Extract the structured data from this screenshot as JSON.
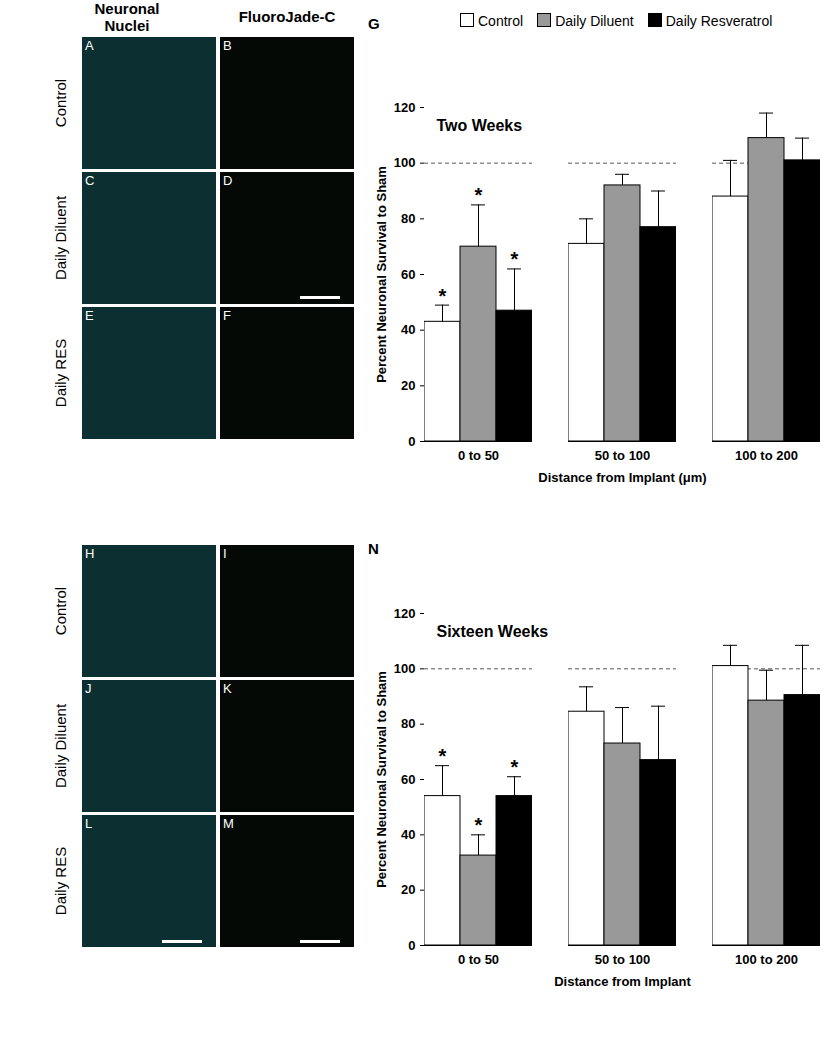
{
  "image_panels": {
    "column_headers": [
      "Neuronal Nuclei",
      "FluoroJade-C"
    ],
    "groups": [
      {
        "rows": [
          {
            "label": "Control",
            "panels": [
              "A",
              "B"
            ]
          },
          {
            "label": "Daily Diluent",
            "panels": [
              "C",
              "D"
            ]
          },
          {
            "label": "Daily RES",
            "panels": [
              "E",
              "F"
            ]
          }
        ]
      },
      {
        "rows": [
          {
            "label": "Control",
            "panels": [
              "H",
              "I"
            ]
          },
          {
            "label": "Daily Diluent",
            "panels": [
              "J",
              "K"
            ]
          },
          {
            "label": "Daily RES",
            "panels": [
              "L",
              "M"
            ]
          }
        ]
      }
    ]
  },
  "chart_data": [
    {
      "type": "bar",
      "panel_label": "G",
      "title": "Two Weeks",
      "x_label": "Distance from Implant (μm)",
      "y_label": "Percent Neuronal Survival to Sham",
      "categories": [
        "0 to 50",
        "50 to 100",
        "100 to 200"
      ],
      "series": [
        {
          "name": "Control",
          "color": "#ffffff",
          "values": [
            43,
            71,
            88
          ],
          "error": [
            6,
            9,
            13
          ]
        },
        {
          "name": "Daily Diluent",
          "color": "#999999",
          "values": [
            70,
            92,
            109
          ],
          "error": [
            15,
            4,
            9
          ]
        },
        {
          "name": "Daily Resveratrol",
          "color": "#000000",
          "values": [
            47,
            77,
            101
          ],
          "error": [
            15,
            13,
            8
          ]
        }
      ],
      "annotations": [
        {
          "series": "Control",
          "category": "0 to 50",
          "text": "*"
        },
        {
          "series": "Daily Diluent",
          "category": "0 to 50",
          "text": "*"
        },
        {
          "series": "Daily Resveratrol",
          "category": "0 to 50",
          "text": "*"
        }
      ],
      "reference_line": 100,
      "ylim": [
        0,
        120
      ],
      "yticks": [
        0,
        20,
        40,
        60,
        80,
        100,
        120
      ],
      "legend": "top"
    },
    {
      "type": "bar",
      "panel_label": "N",
      "title": "Sixteen Weeks",
      "x_label": "Distance from Implant",
      "y_label": "Percent Neuronal Survival to Sham",
      "categories": [
        "0 to 50",
        "50 to 100",
        "100 to 200"
      ],
      "series": [
        {
          "name": "Control",
          "color": "#ffffff",
          "values": [
            54,
            84.5,
            101
          ],
          "error": [
            11,
            9,
            7.5
          ]
        },
        {
          "name": "Daily Diluent",
          "color": "#999999",
          "values": [
            32.5,
            73,
            88.5
          ],
          "error": [
            7.5,
            13,
            11
          ]
        },
        {
          "name": "Daily Resveratrol",
          "color": "#000000",
          "values": [
            54,
            67,
            90.5
          ],
          "error": [
            7,
            19.5,
            18
          ]
        }
      ],
      "annotations": [
        {
          "series": "Control",
          "category": "0 to 50",
          "text": "*"
        },
        {
          "series": "Daily Diluent",
          "category": "0 to 50",
          "text": "*"
        },
        {
          "series": "Daily Resveratrol",
          "category": "0 to 50",
          "text": "*"
        }
      ],
      "reference_line": 100,
      "ylim": [
        0,
        120
      ],
      "yticks": [
        0,
        20,
        40,
        60,
        80,
        100,
        120
      ]
    }
  ]
}
